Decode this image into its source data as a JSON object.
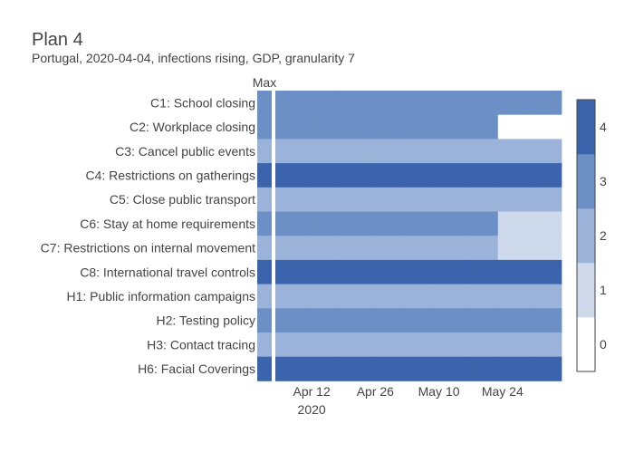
{
  "chart_data": {
    "type": "heatmap",
    "title": "Plan 4",
    "subtitle": "Portugal, 2020-04-04, infections rising, GDP, granularity 7",
    "max_column_label": "Max",
    "rows": [
      "C1: School closing",
      "C2: Workplace closing",
      "C3: Cancel public events",
      "C4: Restrictions on gatherings",
      "C5: Close public transport",
      "C6: Stay at home requirements",
      "C7: Restrictions on internal movement",
      "C8: International travel controls",
      "H1: Public information campaigns",
      "H2: Testing policy",
      "H3: Contact tracing",
      "H6: Facial Coverings"
    ],
    "max_values": [
      3,
      3,
      2,
      4,
      2,
      3,
      2,
      4,
      2,
      3,
      2,
      4
    ],
    "weeks": [
      "2020-04-04",
      "2020-04-11",
      "2020-04-18",
      "2020-04-25",
      "2020-05-02",
      "2020-05-09",
      "2020-05-16",
      "2020-05-23",
      "2020-05-30"
    ],
    "values": [
      [
        3,
        3,
        3,
        3,
        3,
        3,
        3,
        3,
        3
      ],
      [
        3,
        3,
        3,
        3,
        3,
        3,
        3,
        0,
        0
      ],
      [
        2,
        2,
        2,
        2,
        2,
        2,
        2,
        2,
        2
      ],
      [
        4,
        4,
        4,
        4,
        4,
        4,
        4,
        4,
        4
      ],
      [
        2,
        2,
        2,
        2,
        2,
        2,
        2,
        2,
        2
      ],
      [
        3,
        3,
        3,
        3,
        3,
        3,
        3,
        1,
        1
      ],
      [
        2,
        2,
        2,
        2,
        2,
        2,
        2,
        1,
        1
      ],
      [
        4,
        4,
        4,
        4,
        4,
        4,
        4,
        4,
        4
      ],
      [
        2,
        2,
        2,
        2,
        2,
        2,
        2,
        2,
        2
      ],
      [
        3,
        3,
        3,
        3,
        3,
        3,
        3,
        3,
        3
      ],
      [
        2,
        2,
        2,
        2,
        2,
        2,
        2,
        2,
        2
      ],
      [
        4,
        4,
        4,
        4,
        4,
        4,
        4,
        4,
        4
      ]
    ],
    "x_tick_dates": [
      "2020-04-12",
      "2020-04-26",
      "2020-05-10",
      "2020-05-24"
    ],
    "x_tick_labels": [
      "Apr 12",
      "Apr 26",
      "May 10",
      "May 24"
    ],
    "x_tick_year": "2020",
    "colorbar": {
      "ticks": [
        0,
        1,
        2,
        3,
        4
      ],
      "range": [
        0,
        4
      ],
      "colors": [
        "#ffffff",
        "#cfd9ec",
        "#9cb3d9",
        "#6c8fc6",
        "#3b64ad"
      ]
    }
  }
}
